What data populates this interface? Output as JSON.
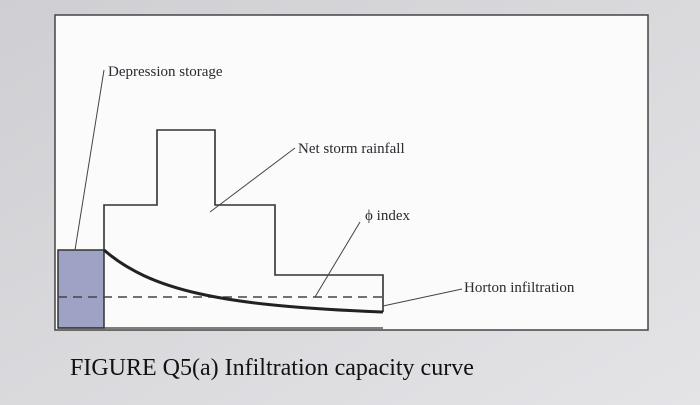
{
  "labels": {
    "depression_storage": "Depression storage",
    "net_storm_rainfall": "Net storm rainfall",
    "phi_index": "ϕ index",
    "horton_infiltration": "Horton infiltration"
  },
  "caption": "FIGURE Q5(a) Infiltration capacity curve"
}
